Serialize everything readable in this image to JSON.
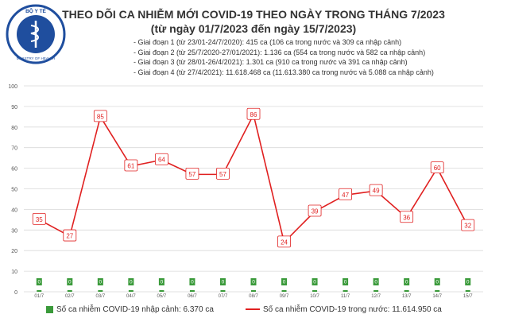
{
  "header": {
    "title_line1": "THEO DÕI CA NHIỄM MỚI COVID-19 THEO NGÀY TRONG THÁNG 7/2023",
    "title_line2": "(từ ngày 01/7/2023 đến ngày 15/7/2023)",
    "logo_text_top": "BỘ Y TẾ",
    "logo_text_bottom": "MINISTRY OF HEALTH"
  },
  "periods": [
    "- Giai đoạn 1 (từ 23/01-24/7/2020): 415 ca (106 ca trong nước và 309 ca nhập cảnh)",
    "- Giai đoạn 2 (từ 25/7/2020-27/01/2021): 1.136 ca (554 ca trong nước và 582 ca nhập cảnh)",
    "- Giai đoạn 3 (từ 28/01-26/4/2021): 1.301 ca (910 ca trong nước và 391 ca nhập cảnh)",
    "- Giai đoạn 4 (từ 27/4/2021): 11.618.468 ca (11.613.380 ca trong nước và 5.088 ca nhập cảnh)"
  ],
  "legend": {
    "bar_label": "Số ca nhiễm COVID-19 nhập cảnh: 6.370 ca",
    "line_label": "Số ca nhiễm COVID-19 trong nước: 11.614.950 ca"
  },
  "colors": {
    "bar": "#3a9a3a",
    "line": "#e02020",
    "grid": "#d9d9d9",
    "label_fill": "#ffffff",
    "title": "#333333",
    "logo_ring": "#1f4e9e"
  },
  "chart_data": {
    "type": "line",
    "categories": [
      "01/7",
      "02/7",
      "03/7",
      "04/7",
      "05/7",
      "06/7",
      "07/7",
      "08/7",
      "09/7",
      "10/7",
      "11/7",
      "12/7",
      "13/7",
      "14/7",
      "15/7"
    ],
    "series": [
      {
        "name": "Số ca nhiễm COVID-19 nhập cảnh: 6.370 ca",
        "type": "bar",
        "values": [
          0,
          0,
          0,
          0,
          0,
          0,
          0,
          0,
          0,
          0,
          0,
          0,
          0,
          0,
          0
        ],
        "labels": [
          "0",
          "0",
          "0",
          "0",
          "0",
          "0",
          "0",
          "0",
          "0",
          "0",
          "0",
          "0",
          "0",
          "0",
          "0"
        ]
      },
      {
        "name": "Số ca nhiễm COVID-19 trong nước: 11.614.950 ca",
        "type": "line",
        "values": [
          35,
          27,
          85,
          61,
          64,
          57,
          57,
          86,
          24,
          39,
          47,
          49,
          36,
          60,
          32
        ],
        "labels": [
          "35",
          "27",
          "85",
          "61",
          "64",
          "57",
          "57",
          "86",
          "24",
          "39",
          "47",
          "49",
          "36",
          "60",
          "32"
        ]
      }
    ],
    "ylim": [
      0,
      100
    ],
    "yticks": [
      0,
      10,
      20,
      30,
      40,
      50,
      60,
      70,
      80,
      90,
      100
    ],
    "ytick_labels": [
      "0",
      "10",
      "20",
      "30",
      "40",
      "50",
      "60",
      "70",
      "80",
      "90",
      "100"
    ],
    "grid": true,
    "legend_position": "bottom"
  }
}
